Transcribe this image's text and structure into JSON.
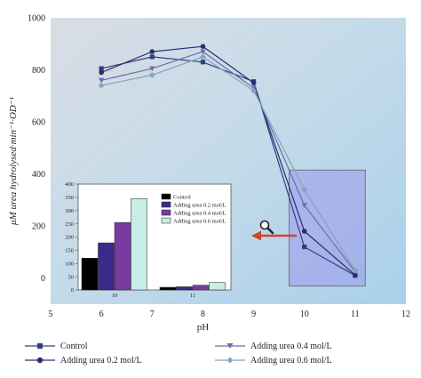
{
  "chart_data": [
    {
      "type": "line",
      "xlabel": "pH",
      "ylabel": "μM urea hydrolysed·min⁻¹·OD⁻¹",
      "xlim": [
        5,
        12
      ],
      "ylim": [
        -100,
        1000
      ],
      "x_ticks": [
        "5",
        "6",
        "7",
        "8",
        "9",
        "10",
        "11",
        "12"
      ],
      "y_ticks": [
        "0",
        "200",
        "400",
        "600",
        "800",
        "1000"
      ],
      "x": [
        6,
        7,
        8,
        9,
        10,
        11
      ],
      "series": [
        {
          "name": "Control",
          "values": [
            805,
            850,
            830,
            755,
            120,
            10
          ],
          "color": "#343d80",
          "marker": "square"
        },
        {
          "name": "Adding urea 0.2 mol/L",
          "values": [
            790,
            870,
            890,
            750,
            180,
            12
          ],
          "color": "#2a2d70",
          "marker": "circle"
        },
        {
          "name": "Adding urea 0.4 mol/L",
          "values": [
            760,
            805,
            870,
            730,
            280,
            25
          ],
          "color": "#6a6fa8",
          "marker": "triangle-down"
        },
        {
          "name": "Adding urea 0.6 mol/L",
          "values": [
            740,
            780,
            850,
            720,
            340,
            30
          ],
          "color": "#7fa8ba",
          "marker": "diamond"
        }
      ],
      "legend_position": "bottom",
      "zoom_box": {
        "x_range": [
          9.7,
          11.2
        ],
        "y_range": [
          -30,
          415
        ]
      },
      "icons": [
        "magnifier-icon",
        "arrow-left-icon"
      ]
    },
    {
      "type": "bar",
      "inset": true,
      "categories": [
        "10",
        "11"
      ],
      "y_ticks": [
        "0",
        "50",
        "100",
        "150",
        "200",
        "250",
        "300",
        "350",
        "400"
      ],
      "ylim": [
        0,
        400
      ],
      "series": [
        {
          "name": "Control",
          "values": [
            120,
            10
          ],
          "color": "#000000"
        },
        {
          "name": "Adding urea 0.2 mol/L",
          "values": [
            178,
            12
          ],
          "color": "#3a2a8a"
        },
        {
          "name": "Adding urea 0.4 mol/L",
          "values": [
            255,
            18
          ],
          "color": "#7a3aa0"
        },
        {
          "name": "Adding urea 0.6 mol/L",
          "values": [
            345,
            28
          ],
          "color": "#c8ece6"
        }
      ],
      "legend_position": "top-right"
    }
  ]
}
